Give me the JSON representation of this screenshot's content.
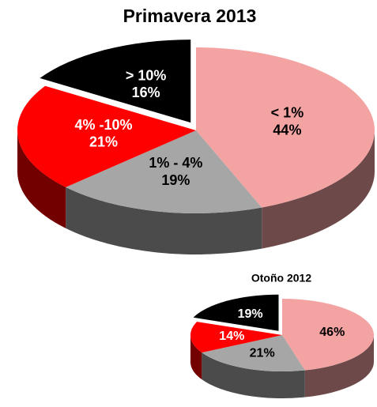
{
  "chart_data": [
    {
      "type": "pie",
      "title": "Primavera 2013",
      "categories": [
        "< 1%",
        "1% - 4%",
        "4% -10%",
        "> 10%"
      ],
      "values": [
        44,
        19,
        21,
        16
      ],
      "value_labels": [
        "44%",
        "19%",
        "21%",
        "16%"
      ],
      "colors": [
        "#f4a3a3",
        "#a6a6a6",
        "#ff0000",
        "#000000"
      ]
    },
    {
      "type": "pie",
      "title": "Otoño 2012",
      "values": [
        46,
        21,
        14,
        19
      ],
      "value_labels": [
        "46%",
        "21%",
        "14%",
        "19%"
      ],
      "colors": [
        "#f4a3a3",
        "#a6a6a6",
        "#ff0000",
        "#000000"
      ]
    }
  ]
}
